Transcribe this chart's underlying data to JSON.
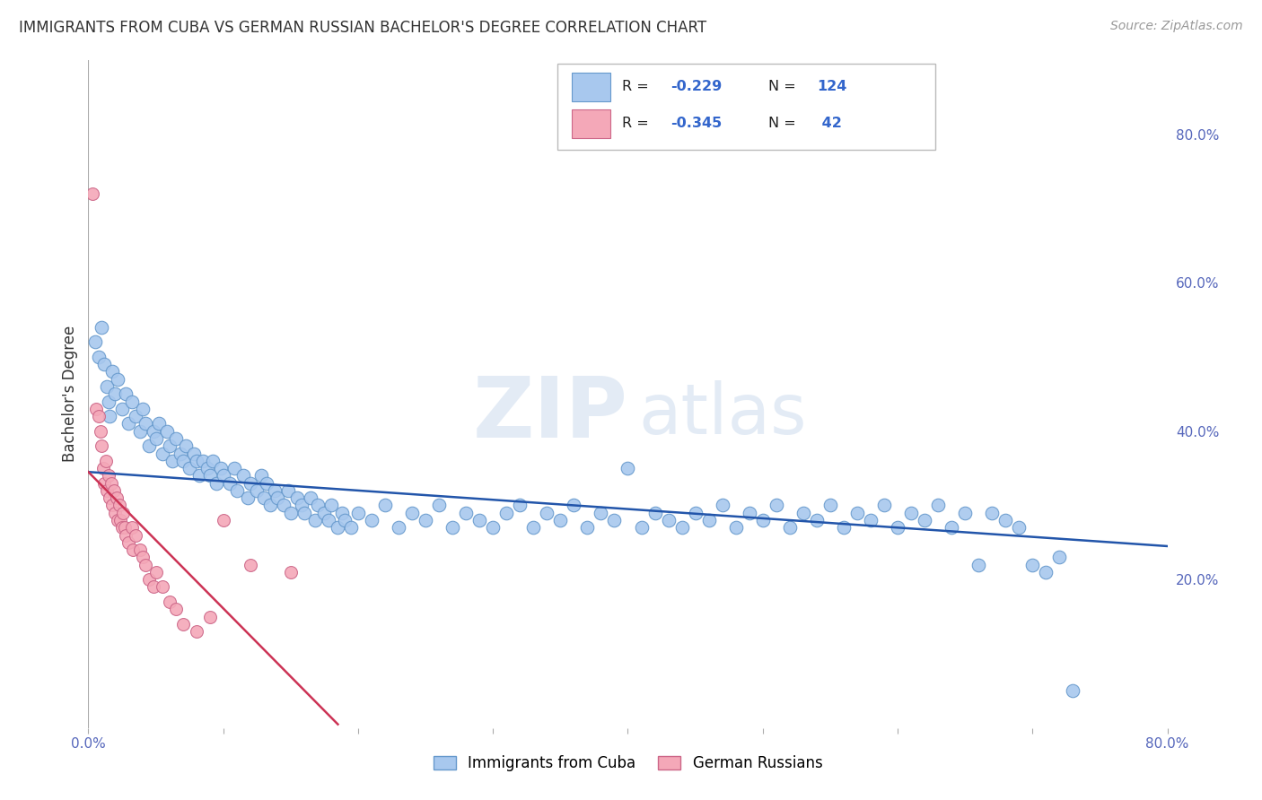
{
  "title": "IMMIGRANTS FROM CUBA VS GERMAN RUSSIAN BACHELOR'S DEGREE CORRELATION CHART",
  "source": "Source: ZipAtlas.com",
  "ylabel": "Bachelor's Degree",
  "watermark": "ZIPatlas",
  "xlim": [
    0.0,
    0.8
  ],
  "ylim": [
    0.0,
    0.9
  ],
  "xtick_pos": [
    0.0,
    0.1,
    0.2,
    0.3,
    0.4,
    0.5,
    0.6,
    0.7,
    0.8
  ],
  "xtick_labels": [
    "0.0%",
    "",
    "",
    "",
    "",
    "",
    "",
    "",
    "80.0%"
  ],
  "ytick_positions_right": [
    0.2,
    0.4,
    0.6,
    0.8
  ],
  "ytick_labels_right": [
    "20.0%",
    "40.0%",
    "60.0%",
    "80.0%"
  ],
  "cuba_color": "#a8c8ee",
  "cuba_edge_color": "#6699cc",
  "german_color": "#f4a8b8",
  "german_edge_color": "#cc6688",
  "trend_cuba_color": "#2255aa",
  "trend_german_color": "#cc3355",
  "R_cuba": -0.229,
  "N_cuba": 124,
  "R_german": -0.345,
  "N_german": 42,
  "legend_label_cuba": "Immigrants from Cuba",
  "legend_label_german": "German Russians",
  "background_color": "#ffffff",
  "grid_color": "#cccccc",
  "cuba_trend_x0": 0.0,
  "cuba_trend_x1": 0.8,
  "cuba_trend_y0": 0.345,
  "cuba_trend_y1": 0.245,
  "german_trend_x0": 0.0,
  "german_trend_x1": 0.185,
  "german_trend_y0": 0.345,
  "german_trend_y1": 0.005,
  "cuba_points": [
    [
      0.005,
      0.52
    ],
    [
      0.008,
      0.5
    ],
    [
      0.01,
      0.54
    ],
    [
      0.012,
      0.49
    ],
    [
      0.014,
      0.46
    ],
    [
      0.015,
      0.44
    ],
    [
      0.016,
      0.42
    ],
    [
      0.018,
      0.48
    ],
    [
      0.02,
      0.45
    ],
    [
      0.022,
      0.47
    ],
    [
      0.025,
      0.43
    ],
    [
      0.028,
      0.45
    ],
    [
      0.03,
      0.41
    ],
    [
      0.032,
      0.44
    ],
    [
      0.035,
      0.42
    ],
    [
      0.038,
      0.4
    ],
    [
      0.04,
      0.43
    ],
    [
      0.042,
      0.41
    ],
    [
      0.045,
      0.38
    ],
    [
      0.048,
      0.4
    ],
    [
      0.05,
      0.39
    ],
    [
      0.052,
      0.41
    ],
    [
      0.055,
      0.37
    ],
    [
      0.058,
      0.4
    ],
    [
      0.06,
      0.38
    ],
    [
      0.062,
      0.36
    ],
    [
      0.065,
      0.39
    ],
    [
      0.068,
      0.37
    ],
    [
      0.07,
      0.36
    ],
    [
      0.072,
      0.38
    ],
    [
      0.075,
      0.35
    ],
    [
      0.078,
      0.37
    ],
    [
      0.08,
      0.36
    ],
    [
      0.082,
      0.34
    ],
    [
      0.085,
      0.36
    ],
    [
      0.088,
      0.35
    ],
    [
      0.09,
      0.34
    ],
    [
      0.092,
      0.36
    ],
    [
      0.095,
      0.33
    ],
    [
      0.098,
      0.35
    ],
    [
      0.1,
      0.34
    ],
    [
      0.105,
      0.33
    ],
    [
      0.108,
      0.35
    ],
    [
      0.11,
      0.32
    ],
    [
      0.115,
      0.34
    ],
    [
      0.118,
      0.31
    ],
    [
      0.12,
      0.33
    ],
    [
      0.125,
      0.32
    ],
    [
      0.128,
      0.34
    ],
    [
      0.13,
      0.31
    ],
    [
      0.132,
      0.33
    ],
    [
      0.135,
      0.3
    ],
    [
      0.138,
      0.32
    ],
    [
      0.14,
      0.31
    ],
    [
      0.145,
      0.3
    ],
    [
      0.148,
      0.32
    ],
    [
      0.15,
      0.29
    ],
    [
      0.155,
      0.31
    ],
    [
      0.158,
      0.3
    ],
    [
      0.16,
      0.29
    ],
    [
      0.165,
      0.31
    ],
    [
      0.168,
      0.28
    ],
    [
      0.17,
      0.3
    ],
    [
      0.175,
      0.29
    ],
    [
      0.178,
      0.28
    ],
    [
      0.18,
      0.3
    ],
    [
      0.185,
      0.27
    ],
    [
      0.188,
      0.29
    ],
    [
      0.19,
      0.28
    ],
    [
      0.195,
      0.27
    ],
    [
      0.2,
      0.29
    ],
    [
      0.21,
      0.28
    ],
    [
      0.22,
      0.3
    ],
    [
      0.23,
      0.27
    ],
    [
      0.24,
      0.29
    ],
    [
      0.25,
      0.28
    ],
    [
      0.26,
      0.3
    ],
    [
      0.27,
      0.27
    ],
    [
      0.28,
      0.29
    ],
    [
      0.29,
      0.28
    ],
    [
      0.3,
      0.27
    ],
    [
      0.31,
      0.29
    ],
    [
      0.32,
      0.3
    ],
    [
      0.33,
      0.27
    ],
    [
      0.34,
      0.29
    ],
    [
      0.35,
      0.28
    ],
    [
      0.36,
      0.3
    ],
    [
      0.37,
      0.27
    ],
    [
      0.38,
      0.29
    ],
    [
      0.39,
      0.28
    ],
    [
      0.4,
      0.35
    ],
    [
      0.41,
      0.27
    ],
    [
      0.42,
      0.29
    ],
    [
      0.43,
      0.28
    ],
    [
      0.44,
      0.27
    ],
    [
      0.45,
      0.29
    ],
    [
      0.46,
      0.28
    ],
    [
      0.47,
      0.3
    ],
    [
      0.48,
      0.27
    ],
    [
      0.49,
      0.29
    ],
    [
      0.5,
      0.28
    ],
    [
      0.51,
      0.3
    ],
    [
      0.52,
      0.27
    ],
    [
      0.53,
      0.29
    ],
    [
      0.54,
      0.28
    ],
    [
      0.55,
      0.3
    ],
    [
      0.56,
      0.27
    ],
    [
      0.57,
      0.29
    ],
    [
      0.58,
      0.28
    ],
    [
      0.59,
      0.3
    ],
    [
      0.6,
      0.27
    ],
    [
      0.61,
      0.29
    ],
    [
      0.62,
      0.28
    ],
    [
      0.63,
      0.3
    ],
    [
      0.64,
      0.27
    ],
    [
      0.65,
      0.29
    ],
    [
      0.66,
      0.22
    ],
    [
      0.67,
      0.29
    ],
    [
      0.68,
      0.28
    ],
    [
      0.69,
      0.27
    ],
    [
      0.7,
      0.22
    ],
    [
      0.71,
      0.21
    ],
    [
      0.72,
      0.23
    ],
    [
      0.73,
      0.05
    ]
  ],
  "german_points": [
    [
      0.003,
      0.72
    ],
    [
      0.006,
      0.43
    ],
    [
      0.008,
      0.42
    ],
    [
      0.009,
      0.4
    ],
    [
      0.01,
      0.38
    ],
    [
      0.011,
      0.35
    ],
    [
      0.012,
      0.33
    ],
    [
      0.013,
      0.36
    ],
    [
      0.014,
      0.32
    ],
    [
      0.015,
      0.34
    ],
    [
      0.016,
      0.31
    ],
    [
      0.017,
      0.33
    ],
    [
      0.018,
      0.3
    ],
    [
      0.019,
      0.32
    ],
    [
      0.02,
      0.29
    ],
    [
      0.021,
      0.31
    ],
    [
      0.022,
      0.28
    ],
    [
      0.023,
      0.3
    ],
    [
      0.024,
      0.28
    ],
    [
      0.025,
      0.27
    ],
    [
      0.026,
      0.29
    ],
    [
      0.027,
      0.27
    ],
    [
      0.028,
      0.26
    ],
    [
      0.03,
      0.25
    ],
    [
      0.032,
      0.27
    ],
    [
      0.033,
      0.24
    ],
    [
      0.035,
      0.26
    ],
    [
      0.038,
      0.24
    ],
    [
      0.04,
      0.23
    ],
    [
      0.042,
      0.22
    ],
    [
      0.045,
      0.2
    ],
    [
      0.048,
      0.19
    ],
    [
      0.05,
      0.21
    ],
    [
      0.055,
      0.19
    ],
    [
      0.06,
      0.17
    ],
    [
      0.065,
      0.16
    ],
    [
      0.07,
      0.14
    ],
    [
      0.08,
      0.13
    ],
    [
      0.09,
      0.15
    ],
    [
      0.1,
      0.28
    ],
    [
      0.12,
      0.22
    ],
    [
      0.15,
      0.21
    ]
  ]
}
